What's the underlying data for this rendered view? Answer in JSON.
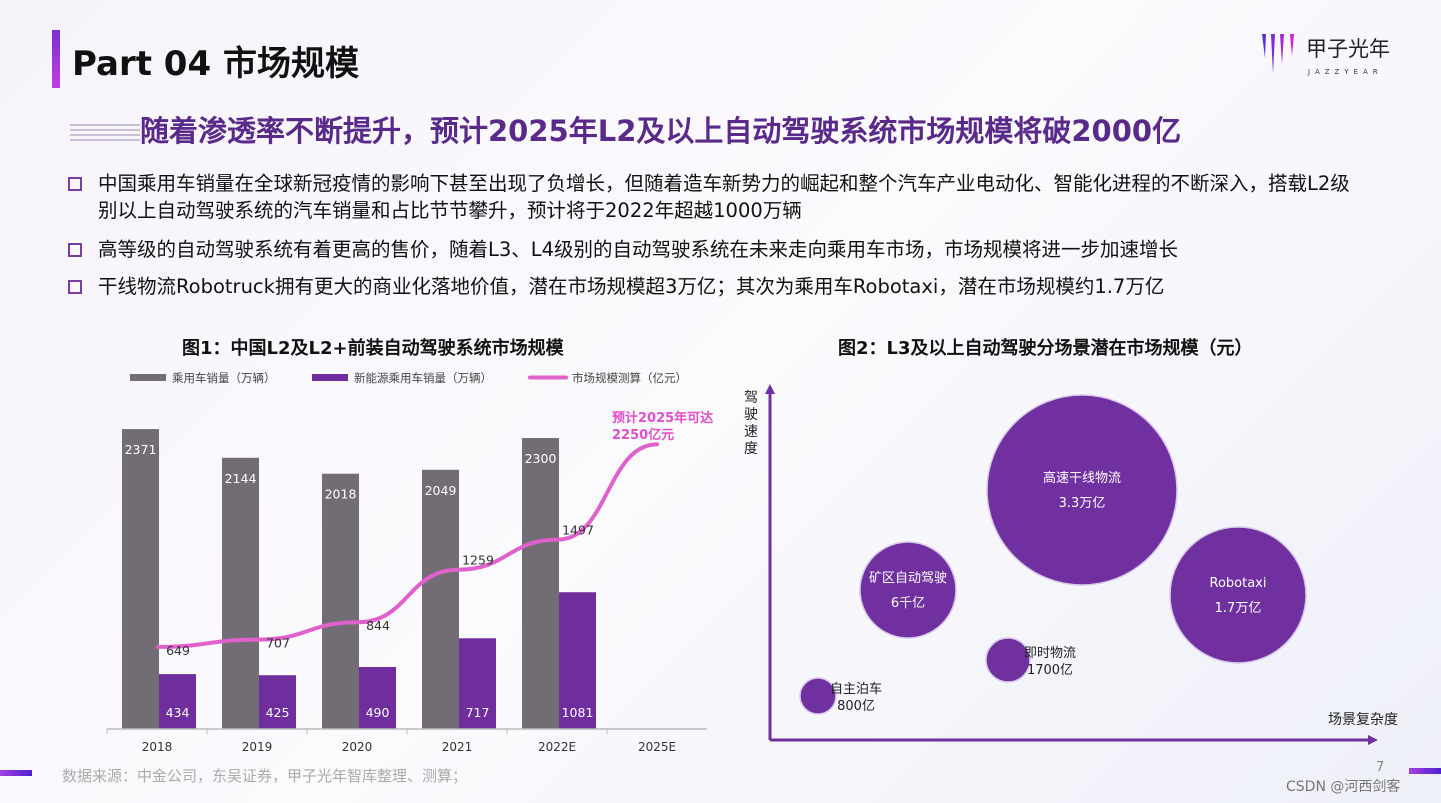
{
  "header": {
    "title": "Part 04 市场规模",
    "subtitle": "随着渗透率不断提升，预计2025年L2及以上自动驾驶系统市场规模将破2000亿"
  },
  "logo": {
    "text": "甲子光年",
    "subtext": "JAZZYEAR"
  },
  "bullets": [
    "中国乘用车销量在全球新冠疫情的影响下甚至出现了负增长，但随着造车新势力的崛起和整个汽车产业电动化、智能化进程的不断深入，搭载L2级别以上自动驾驶系统的汽车销量和占比节节攀升，预计将于2022年超越1000万辆",
    "高等级的自动驾驶系统有着更高的售价，随着L3、L4级别的自动驾驶系统在未来走向乘用车市场，市场规模将进一步加速增长",
    "干线物流Robotruck拥有更大的商业化落地价值，潜在市场规模超3万亿；其次为乘用车Robotaxi，潜在市场规模约1.7万亿"
  ],
  "footer": {
    "source": "数据来源：中金公司，东吴证券，甲子光年智库整理、测算；",
    "page": "7",
    "watermark": "CSDN @河西剑客"
  },
  "chart_data": [
    {
      "type": "bar",
      "title": "图1：中国L2及L2+前装自动驾驶系统市场规模",
      "categories": [
        "2018",
        "2019",
        "2020",
        "2021",
        "2022E",
        "2025E"
      ],
      "series": [
        {
          "name": "乘用车销量（万辆）",
          "type": "bar",
          "color": "#726d75",
          "values": [
            2371,
            2144,
            2018,
            2049,
            2300,
            null
          ]
        },
        {
          "name": "新能源乘用车销量（万辆）",
          "type": "bar",
          "color": "#6f2d9e",
          "values": [
            434,
            425,
            490,
            717,
            1081,
            null
          ]
        },
        {
          "name": "市场规模测算（亿元）",
          "type": "line",
          "color": "#e060cc",
          "values": [
            649,
            707,
            844,
            1259,
            1497,
            2250
          ],
          "labels": [
            "649",
            "707",
            "844",
            "1259",
            "1497",
            ""
          ]
        }
      ],
      "annotation": {
        "line1": "预计2025年可达",
        "line2": "2250亿元",
        "color": "#e050c8"
      },
      "legend_position": "top",
      "grid": false
    },
    {
      "type": "bubble",
      "title": "图2：L3及以上自动驾驶分场景潜在市场规模（元）",
      "ylabel": "驾驶速度",
      "xlabel": "场景复杂度",
      "color": "#7030a0",
      "points": [
        {
          "name": "高速干线物流",
          "value": "3.3万亿"
        },
        {
          "name": "Robotaxi",
          "value": "1.7万亿"
        },
        {
          "name": "矿区自动驾驶",
          "value": "6千亿"
        },
        {
          "name": "即时物流",
          "value": "1700亿"
        },
        {
          "name": "自主泊车",
          "value": "800亿"
        }
      ]
    }
  ]
}
